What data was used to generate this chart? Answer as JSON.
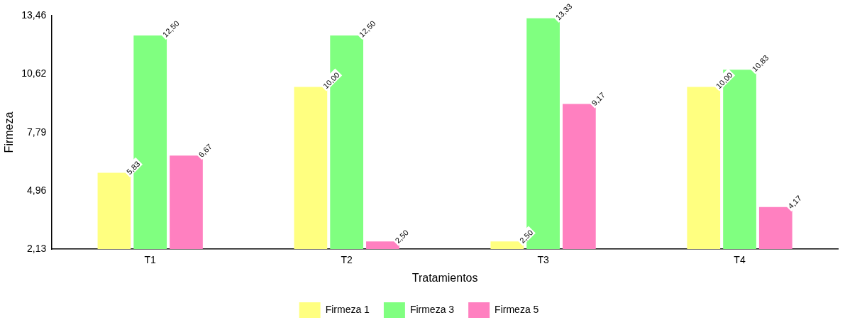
{
  "chart_data": {
    "type": "bar",
    "xlabel": "Tratamientos",
    "ylabel": "Firmeza",
    "categories": [
      "T1",
      "T2",
      "T3",
      "T4"
    ],
    "series": [
      {
        "name": "Firmeza 1",
        "color": "#ffff80",
        "values": [
          5.83,
          10.0,
          2.5,
          10.0
        ],
        "value_labels": [
          "5,83",
          "10,00",
          "2,50",
          "10,00"
        ]
      },
      {
        "name": "Firmeza 3",
        "color": "#80ff80",
        "values": [
          12.5,
          12.5,
          13.33,
          10.83
        ],
        "value_labels": [
          "12,50",
          "12,50",
          "13,33",
          "10,83"
        ]
      },
      {
        "name": "Firmeza 5",
        "color": "#ff80c0",
        "values": [
          6.67,
          2.5,
          9.17,
          4.17
        ],
        "value_labels": [
          "6,67",
          "2,50",
          "9,17",
          "4,17"
        ]
      }
    ],
    "ylim": [
      2.13,
      13.46
    ],
    "yticks": [
      {
        "value": 2.13,
        "label": "2,13"
      },
      {
        "value": 4.96,
        "label": "4,96"
      },
      {
        "value": 7.79,
        "label": "7,79"
      },
      {
        "value": 10.62,
        "label": "10,62"
      },
      {
        "value": 13.46,
        "label": "13,46"
      }
    ],
    "grid": false,
    "legend": "bottom"
  }
}
